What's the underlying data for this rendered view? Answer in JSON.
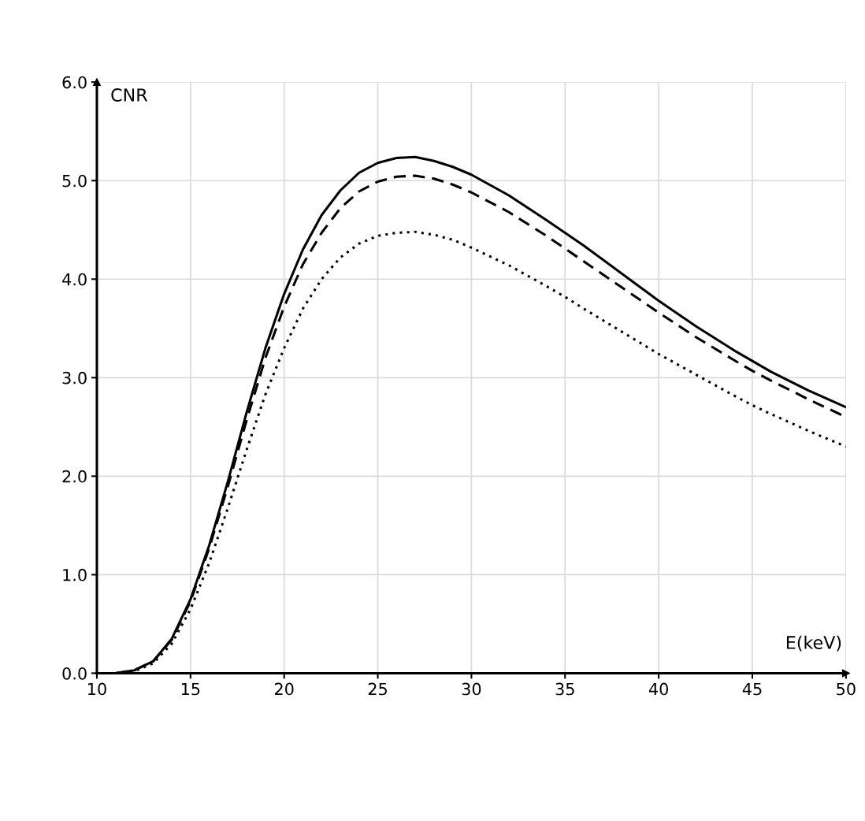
{
  "chart_data": {
    "type": "line",
    "xlabel": "E(keV)",
    "ylabel": "CNR",
    "xlim": [
      10,
      50
    ],
    "xticks": [
      10,
      15,
      20,
      25,
      30,
      35,
      40,
      45,
      50
    ],
    "ylim": [
      0,
      6
    ],
    "yticks": [
      {
        "value": 0,
        "label": "0.0"
      },
      {
        "value": 1,
        "label": "1.0"
      },
      {
        "value": 2,
        "label": "2.0"
      },
      {
        "value": 3,
        "label": "3.0"
      },
      {
        "value": 4,
        "label": "4.0"
      },
      {
        "value": 5,
        "label": "5.0"
      },
      {
        "value": 6,
        "label": "6.0"
      }
    ],
    "grid": true,
    "legend": false,
    "marker": "none",
    "x": [
      11,
      12,
      13,
      14,
      15,
      16,
      17,
      18,
      19,
      20,
      21,
      22,
      23,
      24,
      25,
      26,
      27,
      28,
      29,
      30,
      32,
      34,
      35,
      36,
      38,
      40,
      42,
      44,
      45,
      46,
      48,
      50
    ],
    "series": [
      {
        "color": "#000000",
        "line_style": "solid",
        "values": [
          0,
          0.03,
          0.12,
          0.35,
          0.75,
          1.3,
          1.95,
          2.65,
          3.3,
          3.85,
          4.3,
          4.65,
          4.9,
          5.08,
          5.18,
          5.23,
          5.24,
          5.2,
          5.14,
          5.06,
          4.85,
          4.6,
          4.47,
          4.34,
          4.06,
          3.78,
          3.52,
          3.28,
          3.17,
          3.06,
          2.87,
          2.7
        ]
      },
      {
        "color": "#000000",
        "line_style": "dashed",
        "values": [
          0,
          0.03,
          0.12,
          0.34,
          0.73,
          1.27,
          1.9,
          2.57,
          3.2,
          3.72,
          4.15,
          4.47,
          4.72,
          4.89,
          4.99,
          5.04,
          5.05,
          5.02,
          4.96,
          4.88,
          4.68,
          4.44,
          4.31,
          4.18,
          3.92,
          3.66,
          3.41,
          3.18,
          3.07,
          2.97,
          2.78,
          2.6
        ]
      },
      {
        "color": "#000000",
        "line_style": "dotted",
        "values": [
          0,
          0.02,
          0.1,
          0.3,
          0.65,
          1.12,
          1.68,
          2.27,
          2.83,
          3.3,
          3.7,
          4.0,
          4.22,
          4.36,
          4.44,
          4.47,
          4.48,
          4.45,
          4.4,
          4.32,
          4.14,
          3.93,
          3.82,
          3.7,
          3.47,
          3.24,
          3.03,
          2.82,
          2.72,
          2.63,
          2.46,
          2.3
        ]
      }
    ]
  }
}
